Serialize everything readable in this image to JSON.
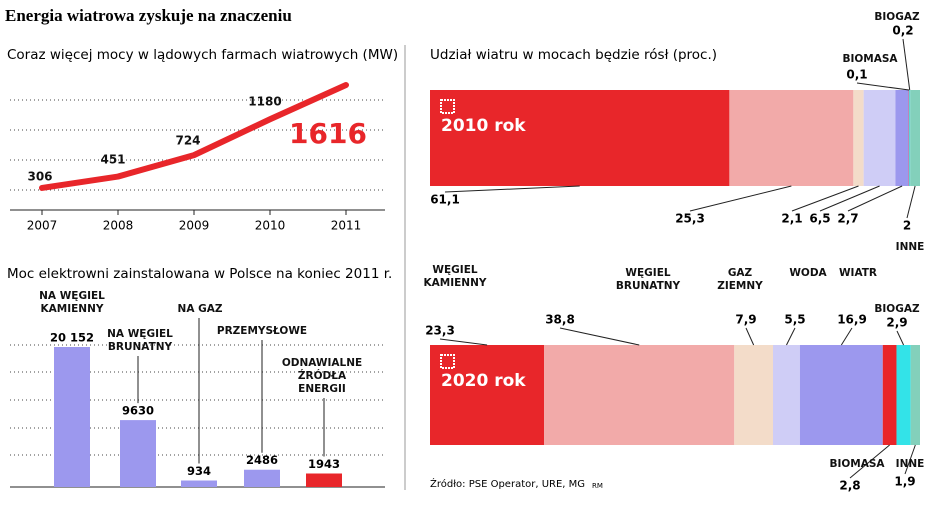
{
  "title": "Energia wiatrowa zyskuje na znaczeniu",
  "chart_data": [
    {
      "type": "line",
      "title": "Coraz więcej mocy w lądowych farmach wiatrowych (MW)",
      "categories": [
        "2007",
        "2008",
        "2009",
        "2010",
        "2011"
      ],
      "values": [
        306,
        451,
        724,
        1180,
        1616
      ],
      "color": "#e8262a"
    },
    {
      "type": "bar",
      "title": "Moc elektrowni zainstalowana w Polsce na koniec 2011 r.",
      "categories": [
        "NA WĘGIEL KAMIENNY",
        "NA WĘGIEL BRUNATNY",
        "NA GAZ",
        "PRZEMYSŁOWE",
        "ODNAWIALNE ŹRÓDŁA ENERGII"
      ],
      "values": [
        20152,
        9630,
        934,
        2486,
        1943
      ],
      "value_labels": [
        "20 152",
        "9630",
        "934",
        "2486",
        "1943"
      ],
      "colors": [
        "#9c98ee",
        "#9c98ee",
        "#9c98ee",
        "#9c98ee",
        "#e8262a"
      ]
    },
    {
      "type": "stacked_bar",
      "title": "Udział wiatru w mocach będzie rósł (proc.)",
      "categories": [
        "2010 rok",
        "2020 rok"
      ],
      "series": [
        {
          "name": "WĘGIEL KAMIENNY",
          "color": "#e8262a",
          "values": [
            61.1,
            23.3
          ],
          "value_labels": [
            "61,1",
            "23,3"
          ]
        },
        {
          "name": "WĘGIEL BRUNATNY",
          "color": "#f2aaa9",
          "values": [
            25.3,
            38.8
          ],
          "value_labels": [
            "25,3",
            "38,8"
          ]
        },
        {
          "name": "GAZ ZIEMNY",
          "color": "#f3dcc9",
          "values": [
            2.1,
            7.9
          ],
          "value_labels": [
            "2,1",
            "7,9"
          ]
        },
        {
          "name": "WODA",
          "color": "#cfcdf6",
          "values": [
            6.5,
            5.5
          ],
          "value_labels": [
            "6,5",
            "5,5"
          ]
        },
        {
          "name": "WIATR",
          "color": "#9c98ee",
          "values": [
            2.7,
            16.9
          ],
          "value_labels": [
            "2,7",
            "16,9"
          ]
        },
        {
          "name": "BIOMASA",
          "color": "#e8262a",
          "values": [
            0.1,
            2.8
          ],
          "value_labels": [
            "0,1",
            "2,8"
          ]
        },
        {
          "name": "BIOGAZ",
          "color": "#33e3e8",
          "values": [
            0.2,
            2.9
          ],
          "value_labels": [
            "0,2",
            "2,9"
          ]
        },
        {
          "name": "INNE",
          "color": "#83d0bb",
          "values": [
            2,
            1.9
          ],
          "value_labels": [
            "2",
            "1,9"
          ]
        }
      ]
    }
  ],
  "source": "Źródło: PSE Operator, URE, MG",
  "credit": "RM"
}
